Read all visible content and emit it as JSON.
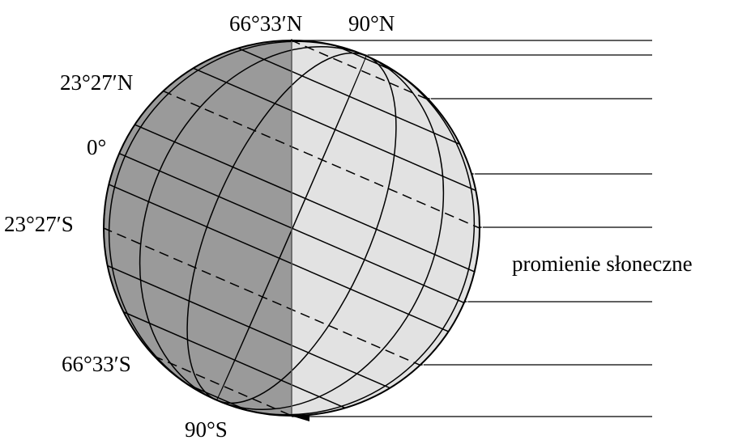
{
  "labels": {
    "lat_66_n": "66°33′N",
    "pole_n": "90°N",
    "lat_23_n": "23°27′N",
    "equator": "0°",
    "lat_23_s": "23°27′S",
    "lat_66_s": "66°33′S",
    "pole_s": "90°S",
    "sun_rays": "promienie słoneczne"
  },
  "colors": {
    "night_side": "#9a9a9a",
    "day_side": "#e2e2e2",
    "lines": "#000000",
    "background": "#ffffff"
  },
  "rays": {
    "count": 8,
    "direction": "from right to left"
  }
}
